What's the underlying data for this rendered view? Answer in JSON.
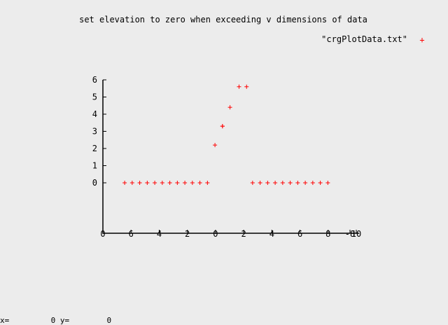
{
  "chart_data": {
    "type": "scatter",
    "title": "set elevation to zero when exceeding v dimensions of data",
    "legend": {
      "label": "\"crgPlotData.txt\"",
      "marker": "+",
      "placement": "top-right"
    },
    "marker_color": "#ff0000",
    "grid": false,
    "ylim": [
      0,
      6
    ],
    "y_ticks": [
      "0",
      "1",
      "2",
      "3",
      "4",
      "5",
      "6"
    ],
    "x_tick_labels": [
      "0",
      "6",
      "4",
      "2",
      "0",
      "2",
      "4",
      "6",
      "8",
      "10",
      "-8"
    ],
    "series": [
      {
        "x": [
          -3.3,
          -3.05,
          -2.8,
          -2.55,
          -2.3,
          -2.05,
          -1.8,
          -1.55,
          -1.3,
          -1.05,
          -0.8,
          -0.55,
          -0.3,
          -0.05,
          -0.05,
          0.2,
          0.5,
          0.75,
          0.95,
          1.2,
          1.45,
          1.7,
          1.95,
          2.2,
          2.45,
          2.7,
          2.95,
          3.2,
          3.45
        ],
        "y": [
          0,
          0,
          0,
          0,
          0,
          0,
          0,
          0,
          0,
          0,
          0,
          0,
          2.2,
          3.3,
          3.3,
          4.4,
          5.6,
          5.6,
          0,
          0,
          0,
          0,
          0,
          0,
          0,
          0,
          0,
          0,
          0
        ]
      }
    ]
  },
  "status": {
    "x_label": "x=",
    "x_value": "0",
    "y_label": "y=",
    "y_value": "0"
  }
}
